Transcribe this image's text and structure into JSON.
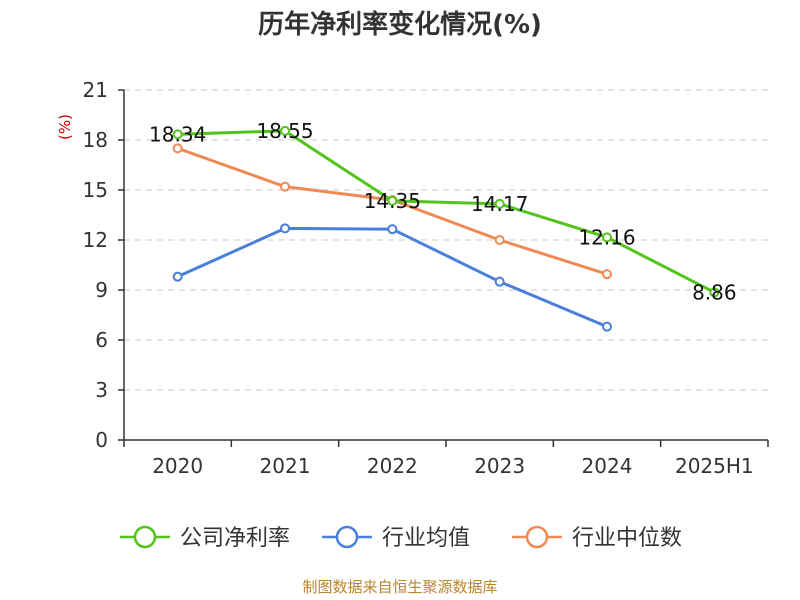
{
  "chart_data": {
    "type": "line",
    "title": "历年净利率变化情况(%)",
    "ylabel": "(%)",
    "categories": [
      "2020",
      "2021",
      "2022",
      "2023",
      "2024",
      "2025H1"
    ],
    "ylim": [
      0,
      21
    ],
    "yticks": [
      0,
      3,
      6,
      9,
      12,
      15,
      18,
      21
    ],
    "grid": true,
    "legend_position": "bottom",
    "series": [
      {
        "name": "公司净利率",
        "color": "#52c41a",
        "values": [
          18.34,
          18.55,
          14.35,
          14.17,
          12.16,
          8.86
        ],
        "data_labels": [
          "18.34",
          "18.55",
          "14.35",
          "14.17",
          "12.16",
          "8.86"
        ]
      },
      {
        "name": "行业均值",
        "color": "#4a7fdb",
        "values": [
          9.8,
          12.7,
          12.65,
          9.5,
          6.8,
          null
        ]
      },
      {
        "name": "行业中位数",
        "color": "#f08a55",
        "values": [
          17.5,
          15.2,
          14.4,
          12.0,
          9.95,
          null
        ]
      }
    ]
  },
  "footer": "制图数据来自恒生聚源数据库"
}
